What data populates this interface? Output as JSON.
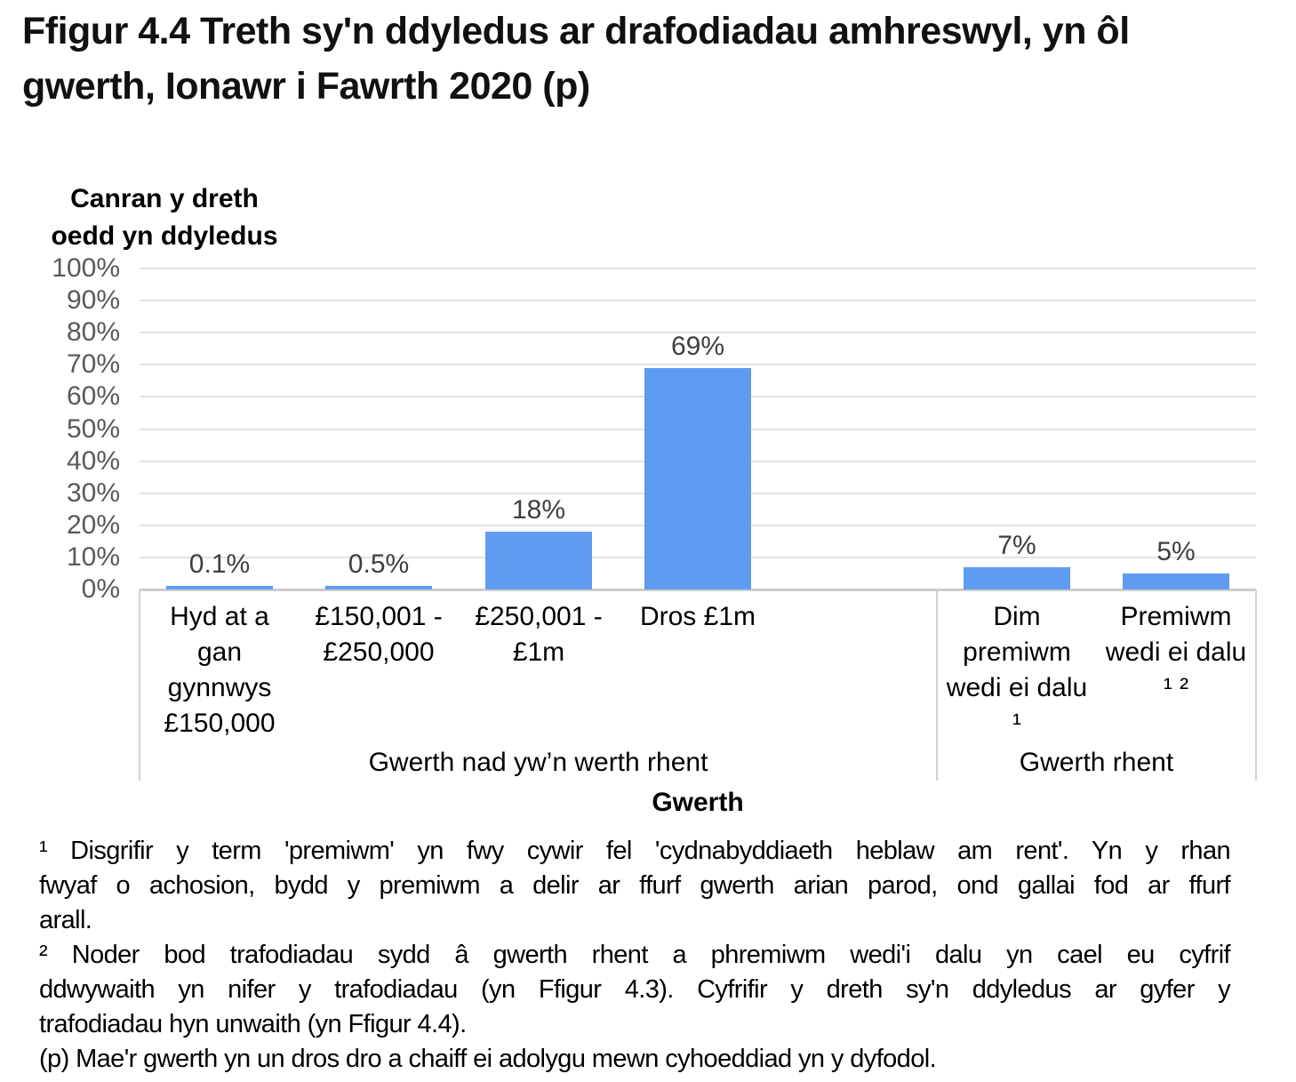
{
  "title": "Ffigur 4.4  Treth sy'n ddyledus ar drafodiadau amhreswyl, yn ôl gwerth, Ionawr i Fawrth 2020 (p)",
  "title_lines": [
    "Ffigur 4.4  Treth sy'n ddyledus ar drafodiadau amhreswyl, yn ôl",
    "gwerth, Ionawr i Fawrth 2020 (p)"
  ],
  "y_axis": {
    "title": "Canran y dreth oedd yn ddyledus",
    "title_lines": [
      "Canran y dreth",
      "oedd yn ddyledus"
    ],
    "tick_labels": [
      "100%",
      "90%",
      "80%",
      "70%",
      "60%",
      "50%",
      "40%",
      "30%",
      "20%",
      "10%",
      "0%"
    ]
  },
  "x_axis": {
    "title": "Gwerth",
    "group_labels": [
      "Gwerth nad yw’n werth rhent",
      "Gwerth rhent"
    ]
  },
  "chart_data": {
    "type": "bar",
    "title": "Ffigur 4.4  Treth sy'n ddyledus ar drafodiadau amhreswyl, yn ôl gwerth, Ionawr i Fawrth 2020 (p)",
    "categories": [
      "Hyd at a gan gynnwys £150,000",
      "£150,001 - £250,000",
      "£250,001 - £1m",
      "Dros £1m",
      "Dim premiwm wedi ei dalu ¹",
      "Premiwm wedi ei dalu ¹ ²"
    ],
    "category_lines": [
      [
        "Hyd at a",
        "gan",
        "gynnwys",
        "£150,000"
      ],
      [
        "£150,001 -",
        "£250,000"
      ],
      [
        "£250,001 -",
        "£1m"
      ],
      [
        "Dros £1m"
      ],
      [
        "Dim",
        "premiwm",
        "wedi ei dalu",
        "¹"
      ],
      [
        "Premiwm",
        "wedi ei dalu",
        "¹ ²"
      ]
    ],
    "category_group": [
      0,
      0,
      0,
      0,
      1,
      1
    ],
    "group_labels": [
      "Gwerth nad yw’n werth rhent",
      "Gwerth rhent"
    ],
    "values": [
      0.1,
      0.5,
      18,
      69,
      7,
      5
    ],
    "value_labels": [
      "0.1%",
      "0.5%",
      "18%",
      "69%",
      "7%",
      "5%"
    ],
    "xlabel": "Gwerth",
    "ylabel": "Canran y dreth oedd yn ddyledus",
    "ylim": [
      0,
      100
    ],
    "ytick_step": 10,
    "grid": true,
    "legend": false,
    "bar_color": "#5F9BF0"
  },
  "footnotes": [
    {
      "lines": [
        "¹ Disgrifir y term 'premiwm' yn fwy cywir fel 'cydnabyddiaeth heblaw am rent'. Yn y rhan",
        "fwyaf o achosion, bydd y premiwm a delir ar ffurf gwerth arian parod, ond gallai fod ar ffurf",
        "arall."
      ]
    },
    {
      "lines": [
        "² Noder bod trafodiadau sydd â gwerth rhent a phremiwm wedi'i dalu yn cael eu cyfrif",
        "ddwywaith yn nifer y trafodiadau (yn Ffigur 4.3). Cyfrifir y dreth sy'n ddyledus ar gyfer y",
        "trafodiadau hyn unwaith (yn Ffigur 4.4)."
      ]
    },
    {
      "lines": [
        "(p) Mae'r gwerth yn un dros dro a chaiff ei adolygu mewn cyhoeddiad yn y dyfodol."
      ]
    }
  ],
  "colors": {
    "bar": "#5F9BF0",
    "gridline": "#E2E2E2",
    "axis_line": "#CDCDCD",
    "box_border": "#D2D2D2",
    "tick_label": "#595959",
    "data_label": "#3F3F3F",
    "text": "#000000"
  }
}
